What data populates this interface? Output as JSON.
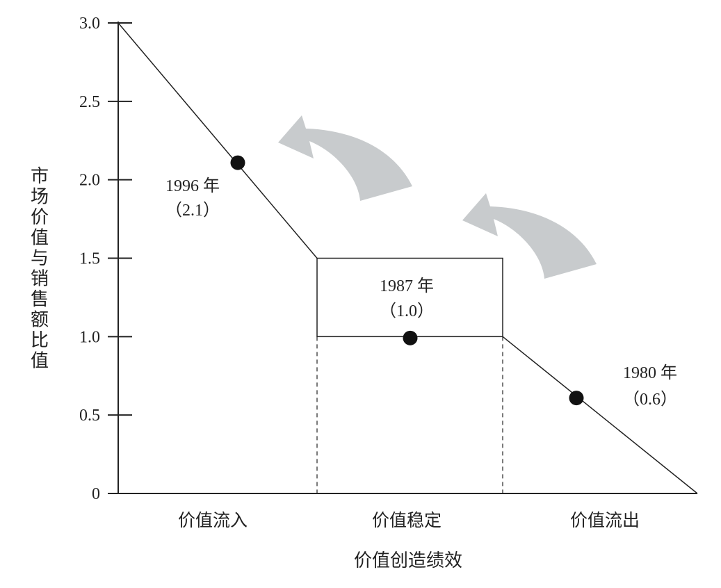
{
  "chart_data": {
    "type": "line",
    "xlabel": "价值创造绩效",
    "ylabel": "市场价值与销售额比值",
    "ylim": [
      0,
      3.0
    ],
    "y_ticks": [
      "0",
      "0.5",
      "1.0",
      "1.5",
      "2.0",
      "2.5",
      "3.0"
    ],
    "y_tick_values": [
      0,
      0.5,
      1.0,
      1.5,
      2.0,
      2.5,
      3.0
    ],
    "categories": [
      "价值流入",
      "价值稳定",
      "价值流出"
    ],
    "points": [
      {
        "year": "1996 年",
        "value_label": "（2.1）",
        "value": 2.1,
        "phase": "价值流入"
      },
      {
        "year": "1987 年",
        "value_label": "（1.0）",
        "value": 1.0,
        "phase": "价值稳定"
      },
      {
        "year": "1980 年",
        "value_label": "（0.6）",
        "value": 0.6,
        "phase": "价值流出"
      }
    ],
    "stable_band": [
      1.0,
      1.5
    ],
    "grid": false,
    "legend": "none",
    "colors": {
      "line": "#222222",
      "point": "#111111",
      "arrow": "#c8cbcd"
    }
  }
}
